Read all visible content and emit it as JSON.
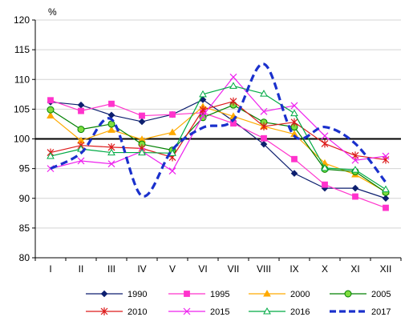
{
  "chart_data": {
    "type": "line",
    "unit_label": "%",
    "categories": [
      "I",
      "II",
      "III",
      "IV",
      "V",
      "VI",
      "VII",
      "VIII",
      "IX",
      "X",
      "XI",
      "XII"
    ],
    "ylim": [
      80,
      120
    ],
    "yticks": [
      80,
      85,
      90,
      95,
      100,
      105,
      110,
      115,
      120
    ],
    "reference_line": 100,
    "legend_position": "bottom",
    "series": [
      {
        "name": "1990",
        "color": "#0d1f6f",
        "marker": "diamond",
        "dash": "solid",
        "values": [
          106.2,
          105.7,
          104.0,
          102.9,
          104.1,
          106.6,
          103.0,
          99.1,
          94.2,
          91.7,
          91.7,
          90.0
        ]
      },
      {
        "name": "1995",
        "color": "#ff33cc",
        "marker": "square",
        "dash": "solid",
        "values": [
          106.5,
          104.7,
          105.9,
          103.9,
          104.1,
          104.4,
          102.6,
          100.1,
          96.6,
          92.3,
          90.3,
          88.4
        ]
      },
      {
        "name": "2000",
        "color": "#ffaa00",
        "marker": "triangle",
        "dash": "solid",
        "values": [
          103.9,
          99.7,
          101.5,
          99.9,
          101.1,
          105.4,
          103.8,
          102.1,
          100.8,
          95.9,
          94.0,
          91.1
        ]
      },
      {
        "name": "2005",
        "color": "#008000",
        "marker": "circle",
        "dash": "solid",
        "values": [
          104.9,
          101.6,
          102.5,
          99.1,
          98.1,
          103.6,
          105.7,
          102.8,
          102.0,
          94.9,
          94.5,
          91.0
        ]
      },
      {
        "name": "2010",
        "color": "#dd1a1a",
        "marker": "star",
        "dash": "solid",
        "values": [
          97.7,
          98.9,
          98.6,
          98.4,
          96.9,
          104.9,
          106.3,
          102.1,
          102.8,
          99.2,
          97.2,
          96.5
        ]
      },
      {
        "name": "2015",
        "color": "#ee22ee",
        "marker": "x",
        "dash": "solid",
        "values": [
          95.0,
          96.3,
          95.8,
          97.9,
          94.6,
          103.9,
          110.4,
          104.6,
          105.6,
          100.5,
          96.4,
          97.1
        ]
      },
      {
        "name": "2016",
        "color": "#00aa44",
        "marker": "triangle-open",
        "dash": "solid",
        "values": [
          97.1,
          98.3,
          97.7,
          97.7,
          97.6,
          107.5,
          108.9,
          107.6,
          104.3,
          95.1,
          94.8,
          91.5
        ]
      },
      {
        "name": "2017",
        "color": "#1a30cc",
        "marker": "none",
        "dash": "dashed",
        "smooth": true,
        "values": [
          95.0,
          97.6,
          103.3,
          90.4,
          98.2,
          101.9,
          103.2,
          112.6,
          100.5,
          102.0,
          99.2,
          92.7
        ]
      }
    ]
  }
}
